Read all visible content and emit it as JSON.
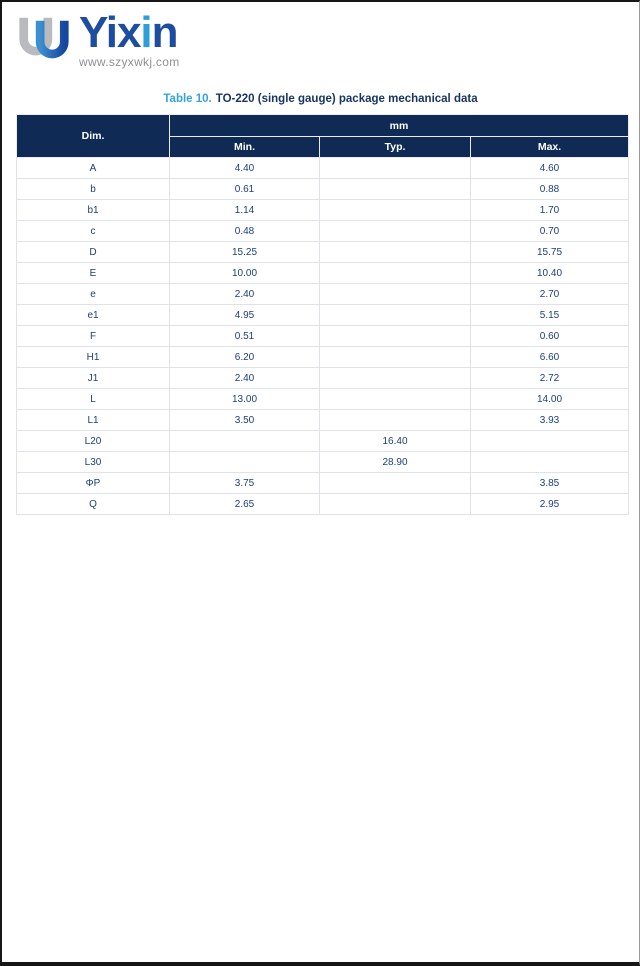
{
  "logo": {
    "mark_icon": "u-logo",
    "wordmark_dark1": "Yix",
    "wordmark_light": "i",
    "wordmark_dark2": "n",
    "url": "www.szyxwkj.com"
  },
  "title": {
    "label": "Table 10.",
    "text": "TO-220 (single gauge) package mechanical data"
  },
  "table": {
    "col_dim": "Dim.",
    "col_unit": "mm",
    "col_min": "Min.",
    "col_typ": "Typ.",
    "col_max": "Max.",
    "rows": [
      {
        "dim": "A",
        "min": "4.40",
        "typ": "",
        "max": "4.60"
      },
      {
        "dim": "b",
        "min": "0.61",
        "typ": "",
        "max": "0.88"
      },
      {
        "dim": "b1",
        "min": "1.14",
        "typ": "",
        "max": "1.70"
      },
      {
        "dim": "c",
        "min": "0.48",
        "typ": "",
        "max": "0.70"
      },
      {
        "dim": "D",
        "min": "15.25",
        "typ": "",
        "max": "15.75"
      },
      {
        "dim": "E",
        "min": "10.00",
        "typ": "",
        "max": "10.40"
      },
      {
        "dim": "e",
        "min": "2.40",
        "typ": "",
        "max": "2.70"
      },
      {
        "dim": "e1",
        "min": "4.95",
        "typ": "",
        "max": "5.15"
      },
      {
        "dim": "F",
        "min": "0.51",
        "typ": "",
        "max": "0.60"
      },
      {
        "dim": "H1",
        "min": "6.20",
        "typ": "",
        "max": "6.60"
      },
      {
        "dim": "J1",
        "min": "2.40",
        "typ": "",
        "max": "2.72"
      },
      {
        "dim": "L",
        "min": "13.00",
        "typ": "",
        "max": "14.00"
      },
      {
        "dim": "L1",
        "min": "3.50",
        "typ": "",
        "max": "3.93"
      },
      {
        "dim": "L20",
        "min": "",
        "typ": "16.40",
        "max": ""
      },
      {
        "dim": "L30",
        "min": "",
        "typ": "28.90",
        "max": ""
      },
      {
        "dim": "ΦP",
        "min": "3.75",
        "typ": "",
        "max": "3.85"
      },
      {
        "dim": "Q",
        "min": "2.65",
        "typ": "",
        "max": "2.95"
      }
    ]
  },
  "colors": {
    "header_bg": "#0e2a55",
    "title_accent": "#33a3dc",
    "title_text": "#17345f",
    "data_text": "#1c3f7c",
    "row_border": "#dfe3e9",
    "logo_dark_blue": "#1d4da1",
    "logo_light_blue": "#2d9fd8",
    "logo_gray": "#b9babd"
  }
}
